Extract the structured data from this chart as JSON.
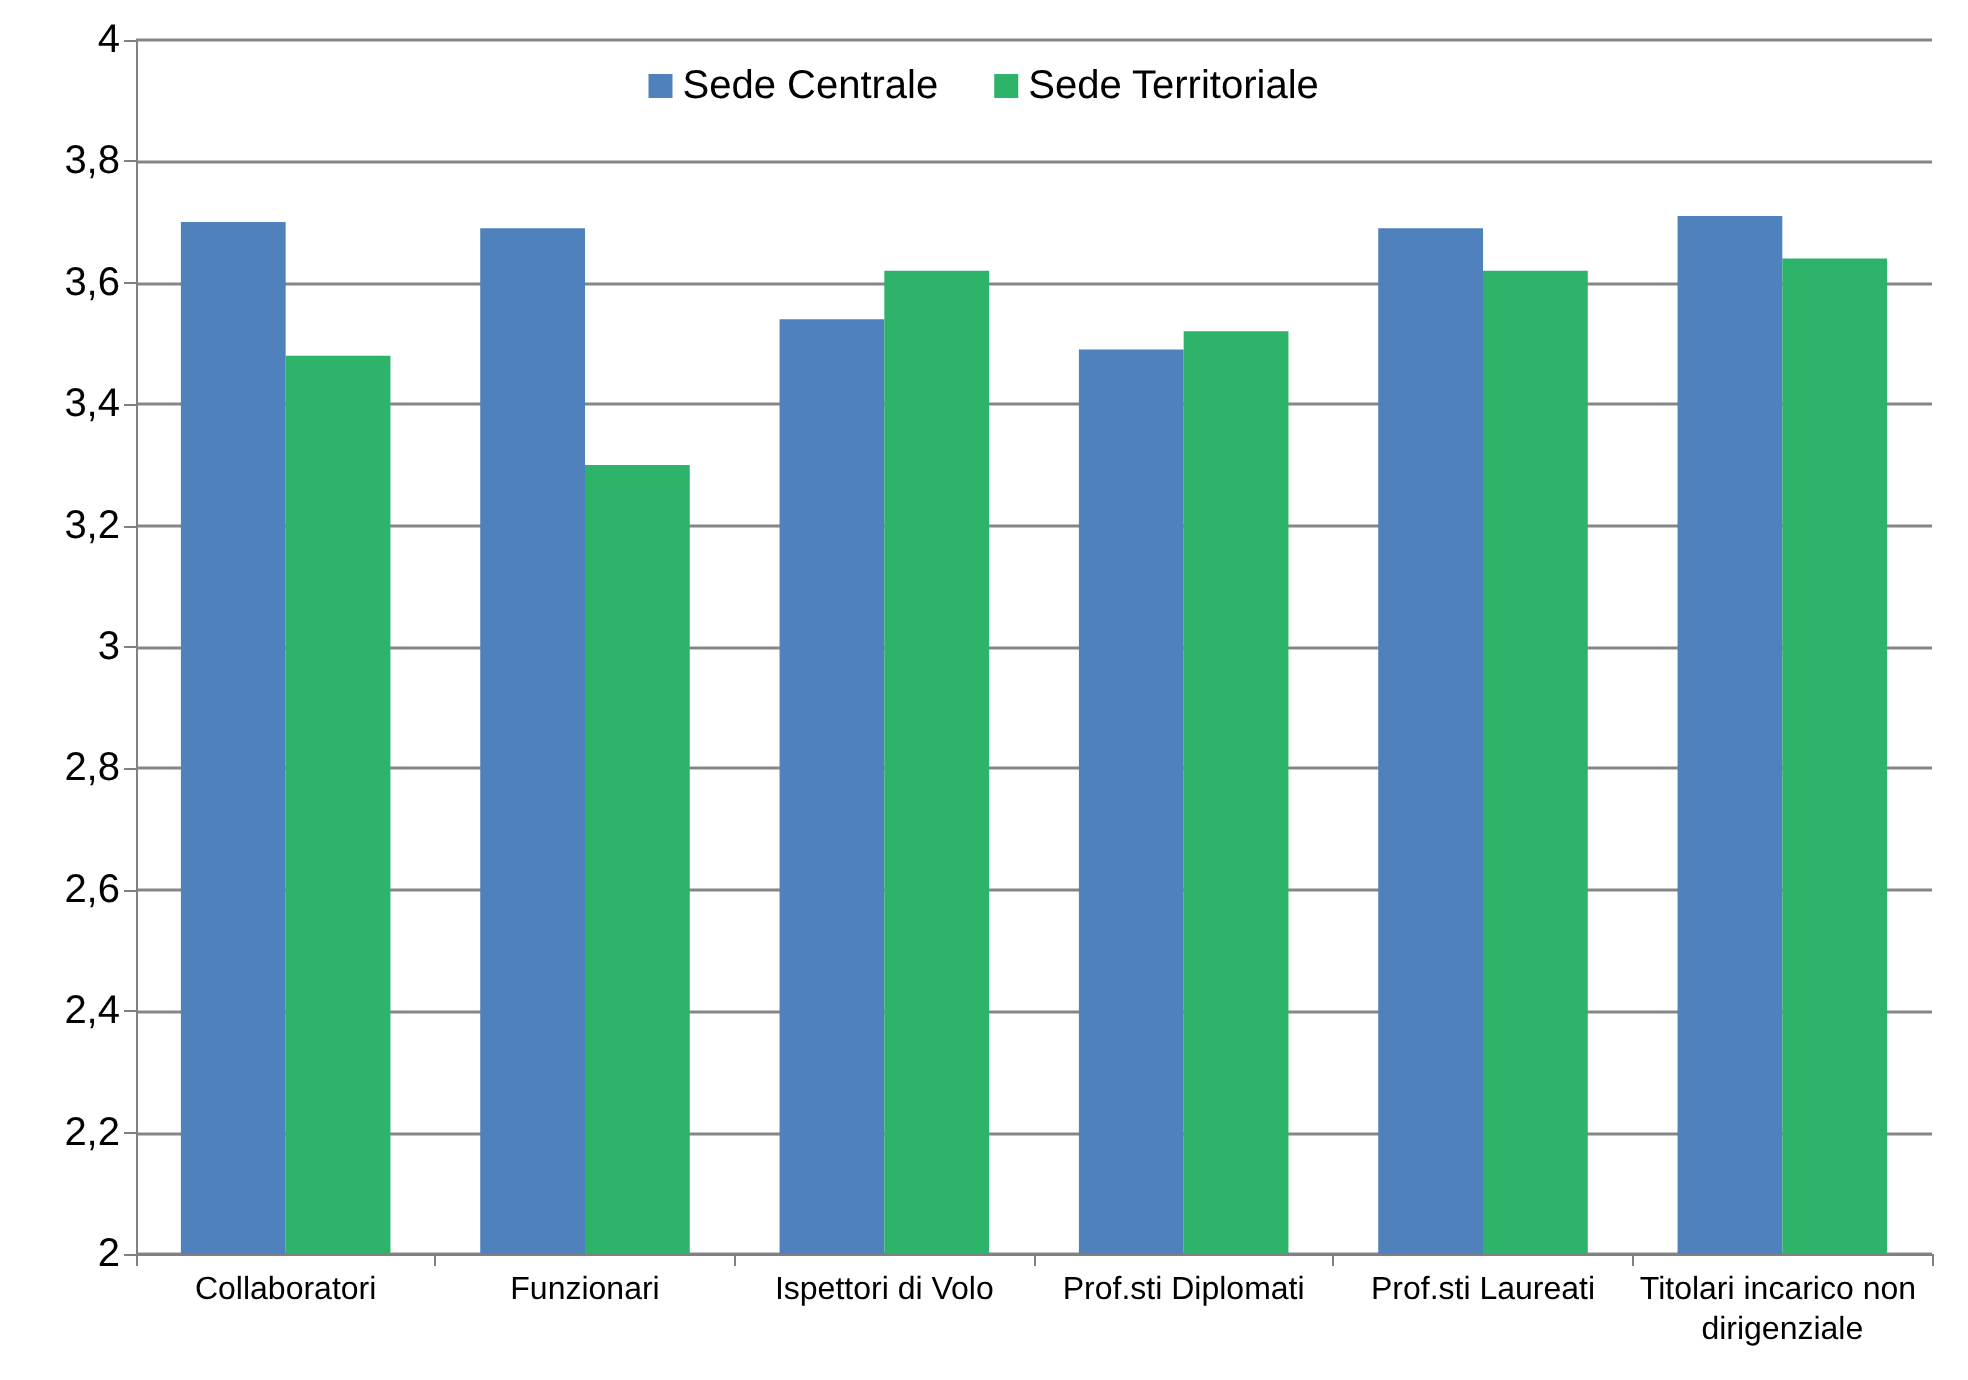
{
  "chart_data": {
    "type": "bar",
    "categories": [
      "Collaboratori",
      "Funzionari",
      "Ispettori di Volo",
      "Prof.sti Diplomati",
      "Prof.sti Laureati",
      "Titolari incarico non dirigenziale"
    ],
    "series": [
      {
        "name": "Sede Centrale",
        "color": "#4f81bd",
        "values": [
          3.7,
          3.69,
          3.54,
          3.49,
          3.69,
          3.71
        ]
      },
      {
        "name": "Sede Territoriale",
        "color": "#2db36a",
        "values": [
          3.48,
          3.3,
          3.62,
          3.52,
          3.62,
          3.64
        ]
      }
    ],
    "ylim": [
      2,
      4
    ],
    "yticks": [
      2,
      {
        "value": 2.2,
        "label": "2,2"
      },
      {
        "value": 2.4,
        "label": "2,4"
      },
      {
        "value": 2.6,
        "label": "2,6"
      },
      {
        "value": 2.8,
        "label": "2,8"
      },
      3,
      {
        "value": 3.2,
        "label": "3,2"
      },
      {
        "value": 3.4,
        "label": "3,4"
      },
      {
        "value": 3.6,
        "label": "3,6"
      },
      {
        "value": 3.8,
        "label": "3,8"
      },
      4
    ],
    "grid": "y",
    "legend": "top"
  }
}
